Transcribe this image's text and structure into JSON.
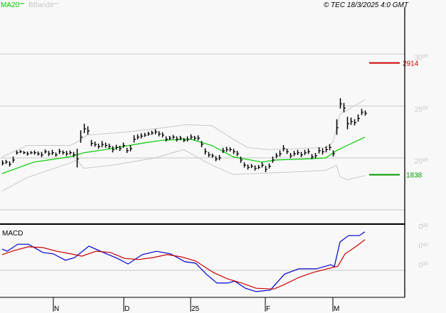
{
  "header": {
    "legend": [
      {
        "label": "MA20",
        "color": "#00cc00"
      },
      {
        "label": "BBands",
        "color": "#c8c8c8"
      }
    ],
    "copyright": "© TEC 18/3/2025 4:0 GMT"
  },
  "chart_data": [
    {
      "type": "ohlc-bar",
      "panel": "price",
      "ylim": [
        14,
        33
      ],
      "y_ticks": [
        "30.00",
        "25.00",
        "20.00"
      ],
      "y_tick_values": [
        30,
        25,
        20
      ],
      "grid_values": [
        30,
        25,
        20,
        15
      ],
      "x_labels": [
        {
          "label": "N",
          "bar": 14.4
        },
        {
          "label": "D",
          "bar": 34.2
        },
        {
          "label": "25",
          "bar": 53
        },
        {
          "label": "F",
          "bar": 74
        },
        {
          "label": "M",
          "bar": 93
        }
      ],
      "bars_close": [
        19.5,
        19.6,
        19.4,
        19.8,
        20.5,
        20.6,
        20.5,
        20.4,
        20.5,
        20.5,
        20.4,
        20.3,
        20.6,
        20.4,
        20.5,
        20.3,
        20.6,
        20.5,
        20.4,
        20.5,
        20.3,
        19.9,
        22.0,
        22.8,
        22.6,
        21.4,
        21.3,
        21.1,
        21.3,
        21.2,
        21.1,
        20.8,
        21.0,
        20.9,
        21.2,
        20.7,
        20.9,
        21.8,
        22.0,
        22.1,
        22.2,
        22.3,
        22.4,
        22.5,
        22.3,
        22.2,
        21.8,
        21.9,
        22.0,
        21.8,
        21.9,
        21.7,
        21.8,
        22.0,
        21.9,
        21.9,
        21.3,
        20.6,
        20.3,
        20.2,
        19.9,
        20.0,
        20.7,
        20.8,
        20.8,
        20.6,
        20.4,
        19.8,
        19.3,
        19.1,
        19.2,
        19.0,
        19.1,
        19.3,
        18.9,
        19.2,
        19.8,
        20.2,
        20.4,
        20.9,
        20.6,
        20.2,
        20.4,
        20.5,
        20.3,
        20.5,
        20.6,
        20.1,
        20.2,
        20.7,
        20.6,
        20.8,
        21.0,
        20.4,
        22.9,
        25.2,
        24.8,
        23.3,
        23.5,
        23.4,
        23.8,
        24.4,
        24.3
      ],
      "bars_range": [
        0.5,
        0.4,
        0.5,
        0.6,
        0.4,
        0.3,
        0.3,
        0.4,
        0.3,
        0.4,
        0.4,
        0.5,
        0.4,
        0.5,
        0.5,
        0.4,
        0.5,
        0.4,
        0.5,
        0.4,
        0.5,
        1.8,
        1.2,
        0.9,
        0.8,
        0.6,
        0.5,
        0.5,
        0.6,
        0.5,
        0.5,
        0.6,
        0.5,
        0.5,
        0.5,
        0.5,
        0.6,
        0.7,
        0.5,
        0.5,
        0.4,
        0.4,
        0.4,
        0.5,
        0.5,
        0.5,
        0.5,
        0.4,
        0.4,
        0.5,
        0.4,
        0.4,
        0.5,
        0.5,
        0.4,
        0.5,
        0.6,
        0.6,
        0.5,
        0.4,
        0.5,
        0.5,
        0.5,
        0.5,
        0.4,
        0.5,
        0.5,
        0.6,
        0.5,
        0.5,
        0.4,
        0.5,
        0.4,
        0.5,
        0.6,
        0.5,
        0.6,
        0.5,
        0.6,
        0.6,
        0.5,
        0.5,
        0.5,
        0.5,
        0.5,
        0.5,
        0.5,
        0.5,
        0.5,
        0.6,
        0.6,
        0.6,
        0.6,
        0.6,
        1.5,
        1.0,
        0.9,
        1.2,
        0.7,
        0.6,
        0.7,
        0.6,
        0.5
      ],
      "ma20": [
        [
          0,
          18.5
        ],
        [
          9,
          19.6
        ],
        [
          19,
          20.1
        ],
        [
          23,
          20.5
        ],
        [
          29,
          20.8
        ],
        [
          39,
          21.4
        ],
        [
          45,
          21.7
        ],
        [
          53,
          21.8
        ],
        [
          59,
          21.2
        ],
        [
          65,
          20.1
        ],
        [
          73,
          19.6
        ],
        [
          77,
          19.8
        ],
        [
          85,
          19.9
        ],
        [
          91,
          20.0
        ],
        [
          94,
          20.7
        ],
        [
          97,
          21.2
        ],
        [
          102,
          22.0
        ]
      ],
      "bband_upper": [
        [
          0,
          20.1
        ],
        [
          7,
          21.2
        ],
        [
          19,
          21.2
        ],
        [
          21,
          21.5
        ],
        [
          24,
          22.2
        ],
        [
          35,
          22.5
        ],
        [
          45,
          22.9
        ],
        [
          52,
          23.2
        ],
        [
          59,
          23.1
        ],
        [
          65,
          21.8
        ],
        [
          69,
          21.0
        ],
        [
          75,
          20.8
        ],
        [
          91,
          21.0
        ],
        [
          93,
          21.5
        ],
        [
          95,
          24.2
        ],
        [
          102,
          25.6
        ]
      ],
      "bband_lower": [
        [
          0,
          16.8
        ],
        [
          7,
          18.1
        ],
        [
          19,
          19.5
        ],
        [
          21,
          19.8
        ],
        [
          23,
          19.0
        ],
        [
          31,
          19.3
        ],
        [
          43,
          20.0
        ],
        [
          51,
          20.8
        ],
        [
          59,
          19.3
        ],
        [
          65,
          18.4
        ],
        [
          71,
          18.5
        ],
        [
          79,
          18.6
        ],
        [
          91,
          18.8
        ],
        [
          94,
          19.3
        ],
        [
          95,
          18.2
        ],
        [
          97,
          17.9
        ],
        [
          102,
          18.3
        ]
      ],
      "markers": [
        {
          "label": "2914",
          "value": 29.14,
          "color": "#cc0000"
        },
        {
          "label": "1838",
          "value": 18.38,
          "color": "#009900"
        }
      ]
    },
    {
      "type": "line",
      "panel": "macd",
      "title": "MACD",
      "ylim": [
        -0.72,
        1.25
      ],
      "y_ticks": [
        "0.80",
        "0.40",
        "0.00"
      ],
      "y_tick_values": [
        0.8,
        0.4,
        0.0
      ],
      "grid_values": [
        0.0
      ],
      "series": [
        {
          "color": "#0000cc",
          "points": [
            [
              0,
              0.57
            ],
            [
              1.4,
              0.51
            ],
            [
              4.4,
              0.7
            ],
            [
              7.4,
              0.7
            ],
            [
              11.4,
              0.48
            ],
            [
              14.4,
              0.44
            ],
            [
              17.8,
              0.27
            ],
            [
              20.4,
              0.34
            ],
            [
              24.4,
              0.65
            ],
            [
              28.4,
              0.48
            ],
            [
              32.4,
              0.32
            ],
            [
              35.4,
              0.17
            ],
            [
              39.4,
              0.42
            ],
            [
              43.4,
              0.51
            ],
            [
              47.4,
              0.44
            ],
            [
              51.4,
              0.23
            ],
            [
              54.4,
              0.19
            ],
            [
              57.4,
              -0.1
            ],
            [
              60.4,
              -0.34
            ],
            [
              63.4,
              -0.34
            ],
            [
              65.4,
              -0.29
            ],
            [
              68.4,
              -0.48
            ],
            [
              71.4,
              -0.57
            ],
            [
              75.4,
              -0.53
            ],
            [
              79.4,
              -0.1
            ],
            [
              83.4,
              0.04
            ],
            [
              88.4,
              0.04
            ],
            [
              92.4,
              0.15
            ],
            [
              93.4,
              0.1
            ],
            [
              95,
              0.76
            ],
            [
              97.4,
              0.93
            ],
            [
              100.4,
              0.93
            ],
            [
              102,
              1.03
            ]
          ]
        },
        {
          "color": "#cc0000",
          "points": [
            [
              0,
              0.42
            ],
            [
              3.4,
              0.53
            ],
            [
              7.4,
              0.63
            ],
            [
              11.4,
              0.61
            ],
            [
              15.4,
              0.51
            ],
            [
              19.4,
              0.44
            ],
            [
              22.4,
              0.38
            ],
            [
              26.4,
              0.51
            ],
            [
              30.4,
              0.48
            ],
            [
              34.4,
              0.32
            ],
            [
              38.4,
              0.29
            ],
            [
              42.4,
              0.34
            ],
            [
              46.4,
              0.42
            ],
            [
              50.4,
              0.36
            ],
            [
              54.4,
              0.25
            ],
            [
              59.4,
              -0.06
            ],
            [
              63.4,
              -0.23
            ],
            [
              67.4,
              -0.34
            ],
            [
              71.4,
              -0.48
            ],
            [
              76.4,
              -0.5
            ],
            [
              79.4,
              -0.38
            ],
            [
              83.4,
              -0.19
            ],
            [
              87.4,
              -0.06
            ],
            [
              91.4,
              0.04
            ],
            [
              94.4,
              0.11
            ],
            [
              96.4,
              0.44
            ],
            [
              99.4,
              0.63
            ],
            [
              102,
              0.82
            ]
          ]
        }
      ]
    }
  ]
}
